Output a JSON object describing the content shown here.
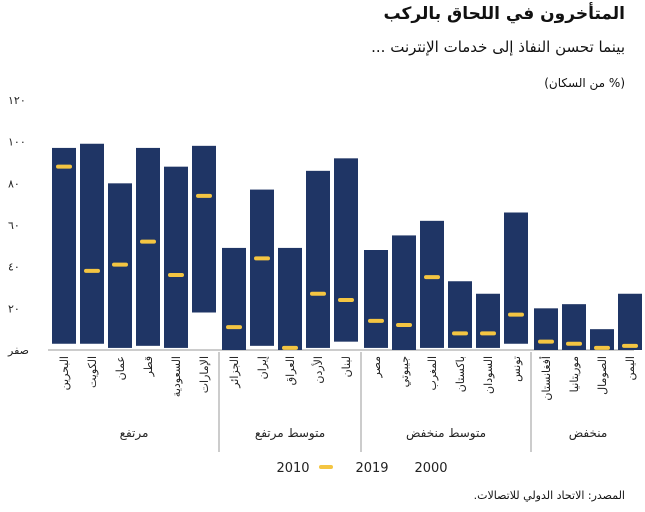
{
  "title": "المتأخرون في اللحاق بالركب",
  "subtitle": "بينما تحسن النفاذ إلى خدمات الإنترنت ...",
  "unit_label": "(% من السكان)",
  "source": "المصدر: الاتحاد الدولي للاتصالات.",
  "colors": {
    "bar": "#1f3565",
    "marker": "#f4c542",
    "axis": "#9a9a9a",
    "text": "#222222"
  },
  "chart_data": {
    "type": "bar",
    "subtype": "floating-range-with-marker",
    "y_ticks": [
      "صفر",
      "٢٠",
      "٤٠",
      "٦٠",
      "٨٠",
      "١٠٠",
      "١٢٠"
    ],
    "ylim": [
      0,
      120
    ],
    "legend": [
      {
        "label": "2000",
        "symbol": "bar-bottom"
      },
      {
        "label": "2019",
        "symbol": "bar-top"
      },
      {
        "label": "2010",
        "symbol": "marker"
      }
    ],
    "groups": [
      {
        "name": "مرتفع",
        "countries": [
          {
            "name": "البحرين",
            "start_2000": 3,
            "end_2019": 97,
            "mid_2010": 88
          },
          {
            "name": "الكويت",
            "start_2000": 3,
            "end_2019": 99,
            "mid_2010": 38
          },
          {
            "name": "عمان",
            "start_2000": 1,
            "end_2019": 80,
            "mid_2010": 41
          },
          {
            "name": "قطر",
            "start_2000": 2,
            "end_2019": 97,
            "mid_2010": 52
          },
          {
            "name": "السعودية",
            "start_2000": 1,
            "end_2019": 88,
            "mid_2010": 36
          },
          {
            "name": "الإمارات",
            "start_2000": 18,
            "end_2019": 98,
            "mid_2010": 74
          }
        ]
      },
      {
        "name": "متوسط مرتفع",
        "countries": [
          {
            "name": "الجزائر",
            "start_2000": 0,
            "end_2019": 49,
            "mid_2010": 11
          },
          {
            "name": "إيران",
            "start_2000": 2,
            "end_2019": 77,
            "mid_2010": 44
          },
          {
            "name": "العراق",
            "start_2000": 0,
            "end_2019": 49,
            "mid_2010": 1
          },
          {
            "name": "الأردن",
            "start_2000": 1,
            "end_2019": 86,
            "mid_2010": 27
          },
          {
            "name": "لبنان",
            "start_2000": 4,
            "end_2019": 92,
            "mid_2010": 24
          }
        ]
      },
      {
        "name": "متوسط منخفض",
        "countries": [
          {
            "name": "مصر",
            "start_2000": 1,
            "end_2019": 48,
            "mid_2010": 14
          },
          {
            "name": "جيبوتي",
            "start_2000": 0,
            "end_2019": 55,
            "mid_2010": 12
          },
          {
            "name": "المغرب",
            "start_2000": 1,
            "end_2019": 62,
            "mid_2010": 35
          },
          {
            "name": "باكستان",
            "start_2000": 1,
            "end_2019": 33,
            "mid_2010": 8
          },
          {
            "name": "السودان",
            "start_2000": 1,
            "end_2019": 27,
            "mid_2010": 8
          },
          {
            "name": "تونس",
            "start_2000": 3,
            "end_2019": 66,
            "mid_2010": 17
          }
        ]
      },
      {
        "name": "منخفض",
        "countries": [
          {
            "name": "أفغانستان",
            "start_2000": 0,
            "end_2019": 20,
            "mid_2010": 4
          },
          {
            "name": "موريتانيا",
            "start_2000": 0,
            "end_2019": 22,
            "mid_2010": 3
          },
          {
            "name": "الصومال",
            "start_2000": 0,
            "end_2019": 10,
            "mid_2010": 1
          },
          {
            "name": "اليمن",
            "start_2000": 0,
            "end_2019": 27,
            "mid_2010": 2
          }
        ]
      }
    ]
  }
}
